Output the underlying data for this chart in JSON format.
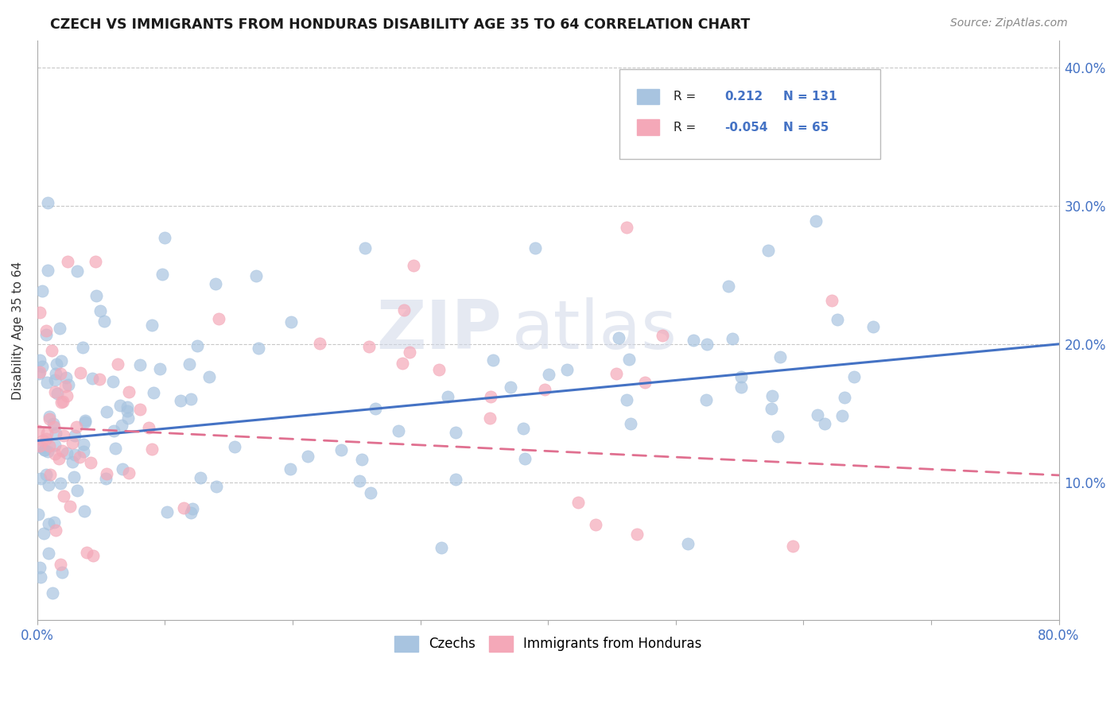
{
  "title": "CZECH VS IMMIGRANTS FROM HONDURAS DISABILITY AGE 35 TO 64 CORRELATION CHART",
  "source_text": "Source: ZipAtlas.com",
  "ylabel": "Disability Age 35 to 64",
  "xlim": [
    0.0,
    0.8
  ],
  "ylim": [
    0.0,
    0.42
  ],
  "xticks": [
    0.0,
    0.1,
    0.2,
    0.3,
    0.4,
    0.5,
    0.6,
    0.7,
    0.8
  ],
  "yticks": [
    0.0,
    0.1,
    0.2,
    0.3,
    0.4
  ],
  "watermark_zip": "ZIP",
  "watermark_atlas": "atlas",
  "czech_color": "#a8c4e0",
  "honduras_color": "#f4a8b8",
  "czech_R": 0.212,
  "czech_N": 131,
  "honduras_R": -0.054,
  "honduras_N": 65,
  "czech_trend_color": "#4472c4",
  "honduras_trend_color": "#e07090",
  "background_color": "#ffffff",
  "grid_color": "#c8c8c8",
  "title_color": "#1a1a1a",
  "axis_label_color": "#4472c4",
  "tick_label_color": "#4472c4",
  "legend_label1": "Czechs",
  "legend_label2": "Immigrants from Honduras",
  "czech_trend_start_y": 0.13,
  "czech_trend_end_y": 0.2,
  "honduras_trend_start_y": 0.14,
  "honduras_trend_end_y": 0.105,
  "czech_seed": 42,
  "honduras_seed": 7
}
